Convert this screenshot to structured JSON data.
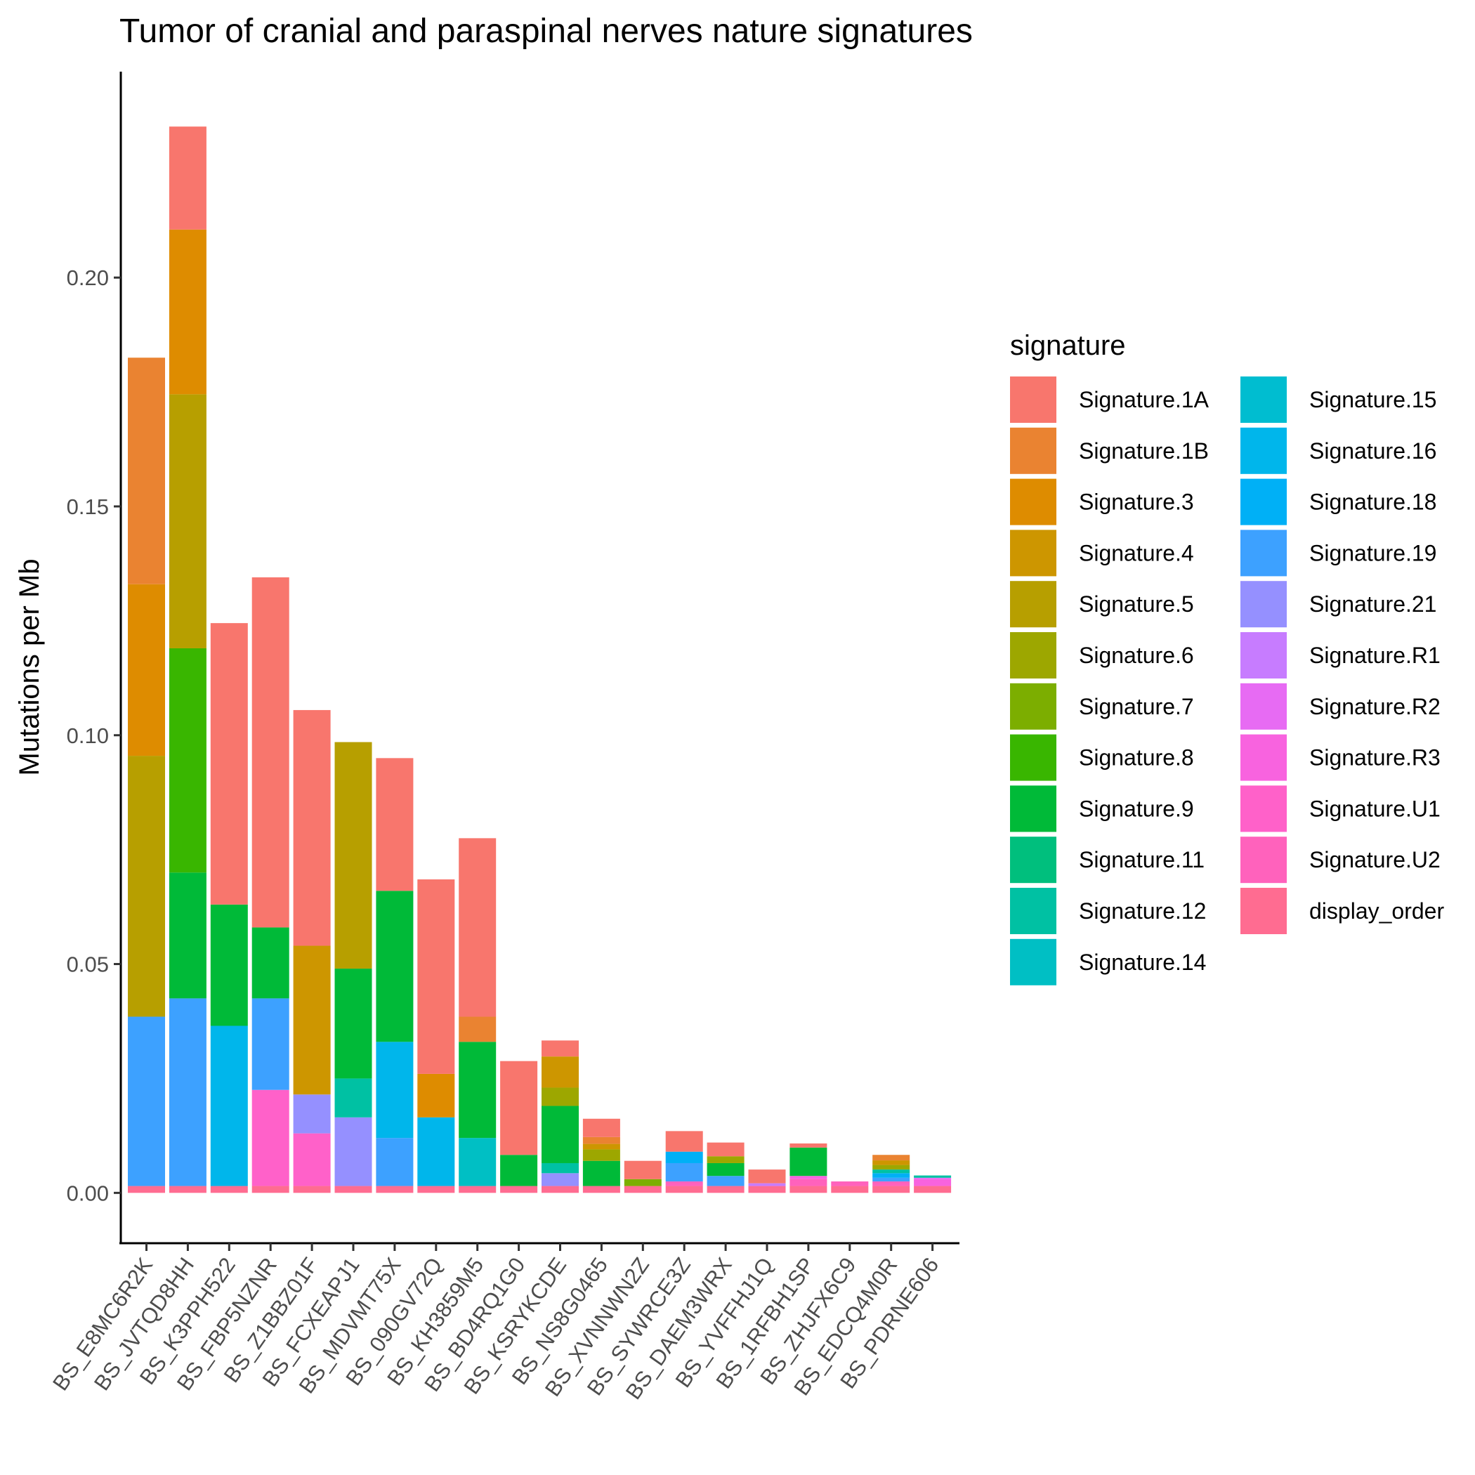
{
  "chart_data": {
    "type": "bar",
    "stacked": true,
    "title": "Tumor of cranial and paraspinal nerves nature signatures",
    "xlabel": "",
    "ylabel": "Mutations per Mb",
    "ylim": [
      -0.011,
      0.245
    ],
    "yticks": [
      0.0,
      0.05,
      0.1,
      0.15,
      0.2
    ],
    "ytick_labels": [
      "0.00",
      "0.05",
      "0.10",
      "0.15",
      "0.20"
    ],
    "grid": false,
    "legend_title": "signature",
    "legend_position": "right",
    "categories": [
      "BS_E8MC6R2K",
      "BS_JVTQD8HH",
      "BS_K3PPH522",
      "BS_FBP5NZNR",
      "BS_Z1BBZ01F",
      "BS_FCXEAPJ1",
      "BS_MDVMT75X",
      "BS_090GV72Q",
      "BS_KH3859M5",
      "BS_BD4RQ1G0",
      "BS_KSRYKCDE",
      "BS_NS8G0465",
      "BS_XVNNWN2Z",
      "BS_SYWRCE3Z",
      "BS_DAEM3WRX",
      "BS_YVFFHJ1Q",
      "BS_1RFBH1SP",
      "BS_ZHJFX6C9",
      "BS_EDCQ4M0R",
      "BS_PDRNE606"
    ],
    "series": [
      {
        "name": "display_order",
        "color": "#FF6C91",
        "values": [
          0.0015,
          0.0015,
          0.0015,
          0.0015,
          0.0015,
          0.0015,
          0.0015,
          0.0015,
          0.0015,
          0.0015,
          0.0015,
          0.0015,
          0.0015,
          0.0015,
          0.0015,
          0.0015,
          0.0015,
          0.0015,
          0.0015,
          0.0015
        ]
      },
      {
        "name": "Signature.U2",
        "color": "#FF62BC",
        "values": [
          0,
          0,
          0,
          0,
          0,
          0,
          0,
          0,
          0,
          0,
          0,
          0,
          0,
          0.001,
          0,
          0,
          0.0015,
          0.001,
          0.001,
          0
        ]
      },
      {
        "name": "Signature.U1",
        "color": "#FF61C9",
        "values": [
          0,
          0,
          0,
          0.021,
          0.0115,
          0,
          0,
          0,
          0,
          0,
          0,
          0,
          0,
          0,
          0,
          0,
          0,
          0,
          0,
          0
        ]
      },
      {
        "name": "Signature.R3",
        "color": "#F863DF",
        "values": [
          0,
          0,
          0,
          0,
          0,
          0,
          0,
          0,
          0,
          0,
          0,
          0,
          0,
          0,
          0,
          0,
          0.0007,
          0,
          0,
          0.0015
        ]
      },
      {
        "name": "Signature.R2",
        "color": "#E76BF3",
        "values": [
          0,
          0,
          0,
          0,
          0,
          0,
          0,
          0,
          0,
          0,
          0,
          0,
          0,
          0,
          0,
          0,
          0,
          0,
          0,
          0.0003
        ]
      },
      {
        "name": "Signature.R1",
        "color": "#C77CFF",
        "values": [
          0,
          0,
          0,
          0,
          0,
          0,
          0,
          0,
          0,
          0,
          0,
          0,
          0,
          0,
          0,
          0.0006,
          0,
          0,
          0,
          0
        ]
      },
      {
        "name": "Signature.21",
        "color": "#9590FF",
        "values": [
          0,
          0,
          0,
          0,
          0.0085,
          0.015,
          0,
          0,
          0,
          0,
          0.0028,
          0,
          0,
          0,
          0,
          0,
          0,
          0,
          0,
          0
        ]
      },
      {
        "name": "Signature.19",
        "color": "#3DA1FF",
        "values": [
          0.037,
          0.041,
          0,
          0.02,
          0,
          0,
          0.0105,
          0,
          0,
          0,
          0,
          0,
          0,
          0.004,
          0.0022,
          0,
          0,
          0,
          0.0008,
          0
        ]
      },
      {
        "name": "Signature.18",
        "color": "#00B0F6",
        "values": [
          0,
          0,
          0,
          0,
          0,
          0,
          0,
          0,
          0,
          0,
          0,
          0,
          0,
          0.0025,
          0,
          0,
          0,
          0,
          0.001,
          0
        ]
      },
      {
        "name": "Signature.16",
        "color": "#00B6EB",
        "values": [
          0,
          0,
          0.035,
          0,
          0,
          0,
          0.021,
          0.015,
          0,
          0,
          0,
          0,
          0,
          0,
          0,
          0,
          0,
          0,
          0,
          0
        ]
      },
      {
        "name": "Signature.15",
        "color": "#00BDD0",
        "values": [
          0,
          0,
          0,
          0,
          0,
          0,
          0,
          0,
          0,
          0,
          0,
          0,
          0,
          0,
          0,
          0,
          0,
          0,
          0,
          0
        ]
      },
      {
        "name": "Signature.14",
        "color": "#00BFC4",
        "values": [
          0,
          0,
          0,
          0,
          0,
          0,
          0,
          0,
          0.0105,
          0,
          0,
          0,
          0,
          0,
          0,
          0,
          0,
          0,
          0,
          0
        ]
      },
      {
        "name": "Signature.12",
        "color": "#00C1A3",
        "values": [
          0,
          0,
          0,
          0,
          0,
          0.0085,
          0,
          0,
          0,
          0,
          0.0022,
          0,
          0,
          0,
          0,
          0,
          0,
          0,
          0.0008,
          0.0005
        ]
      },
      {
        "name": "Signature.11",
        "color": "#00BF7D",
        "values": [
          0,
          0,
          0,
          0,
          0,
          0,
          0,
          0,
          0,
          0,
          0,
          0,
          0,
          0,
          0,
          0,
          0,
          0,
          0,
          0
        ]
      },
      {
        "name": "Signature.9",
        "color": "#00BA38",
        "values": [
          0,
          0.0275,
          0.0265,
          0.0155,
          0,
          0.024,
          0.033,
          0,
          0.021,
          0.0068,
          0.0125,
          0.0055,
          0,
          0,
          0.0028,
          0,
          0.0062,
          0,
          0,
          0
        ]
      },
      {
        "name": "Signature.8",
        "color": "#39B600",
        "values": [
          0,
          0.049,
          0,
          0,
          0,
          0,
          0,
          0,
          0,
          0,
          0,
          0,
          0,
          0,
          0,
          0,
          0,
          0,
          0,
          0
        ]
      },
      {
        "name": "Signature.7",
        "color": "#7CAE00",
        "values": [
          0,
          0,
          0,
          0,
          0,
          0,
          0,
          0,
          0,
          0,
          0,
          0,
          0.0015,
          0,
          0,
          0,
          0,
          0,
          0,
          0
        ]
      },
      {
        "name": "Signature.6",
        "color": "#9DA700",
        "values": [
          0,
          0,
          0,
          0,
          0,
          0,
          0,
          0,
          0,
          0,
          0.004,
          0.0025,
          0,
          0,
          0.0015,
          0,
          0,
          0,
          0.001,
          0
        ]
      },
      {
        "name": "Signature.5",
        "color": "#B79F00",
        "values": [
          0.057,
          0.0555,
          0,
          0,
          0,
          0.0495,
          0,
          0,
          0,
          0,
          0,
          0,
          0,
          0,
          0,
          0,
          0,
          0,
          0,
          0
        ]
      },
      {
        "name": "Signature.4",
        "color": "#CD9600",
        "values": [
          0,
          0,
          0,
          0,
          0.0325,
          0,
          0,
          0,
          0,
          0,
          0.0068,
          0.0012,
          0,
          0,
          0,
          0,
          0,
          0,
          0.001,
          0
        ]
      },
      {
        "name": "Signature.3",
        "color": "#DE8C00",
        "values": [
          0.0375,
          0.036,
          0,
          0,
          0,
          0,
          0,
          0.0095,
          0,
          0,
          0,
          0,
          0,
          0,
          0,
          0,
          0,
          0,
          0,
          0
        ]
      },
      {
        "name": "Signature.1B",
        "color": "#EA8331",
        "values": [
          0.0495,
          0,
          0,
          0,
          0,
          0,
          0,
          0,
          0.0055,
          0,
          0,
          0.0015,
          0,
          0,
          0,
          0,
          0,
          0,
          0.0012,
          0
        ]
      },
      {
        "name": "Signature.1A",
        "color": "#F8766D",
        "values": [
          0,
          0.0225,
          0.0615,
          0.0765,
          0.0515,
          0,
          0.029,
          0.0425,
          0.039,
          0.0205,
          0.0035,
          0.004,
          0.004,
          0.0045,
          0.003,
          0.003,
          0.0009,
          0,
          0,
          0
        ]
      }
    ]
  },
  "legend": {
    "columns": [
      [
        {
          "label": "Signature.1A",
          "color": "#F8766D"
        },
        {
          "label": "Signature.1B",
          "color": "#EA8331"
        },
        {
          "label": "Signature.3",
          "color": "#DE8C00"
        },
        {
          "label": "Signature.4",
          "color": "#CD9600"
        },
        {
          "label": "Signature.5",
          "color": "#B79F00"
        },
        {
          "label": "Signature.6",
          "color": "#9DA700"
        },
        {
          "label": "Signature.7",
          "color": "#7CAE00"
        },
        {
          "label": "Signature.8",
          "color": "#39B600"
        },
        {
          "label": "Signature.9",
          "color": "#00BA38"
        },
        {
          "label": "Signature.11",
          "color": "#00BF7D"
        },
        {
          "label": "Signature.12",
          "color": "#00C1A3"
        },
        {
          "label": "Signature.14",
          "color": "#00BFC4"
        }
      ],
      [
        {
          "label": "Signature.15",
          "color": "#00BDD0"
        },
        {
          "label": "Signature.16",
          "color": "#00B6EB"
        },
        {
          "label": "Signature.18",
          "color": "#00B0F6"
        },
        {
          "label": "Signature.19",
          "color": "#3DA1FF"
        },
        {
          "label": "Signature.21",
          "color": "#9590FF"
        },
        {
          "label": "Signature.R1",
          "color": "#C77CFF"
        },
        {
          "label": "Signature.R2",
          "color": "#E76BF3"
        },
        {
          "label": "Signature.R3",
          "color": "#F863DF"
        },
        {
          "label": "Signature.U1",
          "color": "#FF61C9"
        },
        {
          "label": "Signature.U2",
          "color": "#FF62BC"
        },
        {
          "label": "display_order",
          "color": "#FF6C91"
        }
      ]
    ]
  }
}
